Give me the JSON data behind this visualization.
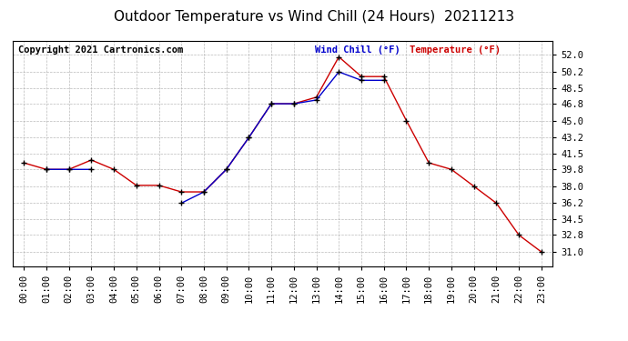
{
  "title": "Outdoor Temperature vs Wind Chill (24 Hours)  20211213",
  "copyright": "Copyright 2021 Cartronics.com",
  "legend_wind_chill": "Wind Chill (°F)",
  "legend_temperature": "Temperature (°F)",
  "hours": [
    "00:00",
    "01:00",
    "02:00",
    "03:00",
    "04:00",
    "05:00",
    "06:00",
    "07:00",
    "08:00",
    "09:00",
    "10:00",
    "11:00",
    "12:00",
    "13:00",
    "14:00",
    "15:00",
    "16:00",
    "17:00",
    "18:00",
    "19:00",
    "20:00",
    "21:00",
    "22:00",
    "23:00"
  ],
  "temperature": [
    40.5,
    39.8,
    39.8,
    40.8,
    39.8,
    38.1,
    38.1,
    37.4,
    37.4,
    39.8,
    43.2,
    46.8,
    46.8,
    47.5,
    51.8,
    49.7,
    49.7,
    45.0,
    40.5,
    39.8,
    38.0,
    36.2,
    32.8,
    31.0
  ],
  "wind_chill": [
    null,
    39.8,
    39.8,
    39.8,
    null,
    null,
    null,
    36.2,
    37.4,
    39.8,
    43.2,
    46.8,
    46.8,
    47.2,
    50.2,
    49.3,
    49.3,
    null,
    null,
    null,
    null,
    null,
    null,
    null
  ],
  "ylim_min": 29.5,
  "ylim_max": 53.5,
  "yticks": [
    31.0,
    32.8,
    34.5,
    36.2,
    38.0,
    39.8,
    41.5,
    43.2,
    45.0,
    46.8,
    48.5,
    50.2,
    52.0
  ],
  "temp_color": "#cc0000",
  "wind_color": "#0000cc",
  "background_color": "#ffffff",
  "grid_color": "#aaaaaa",
  "title_fontsize": 11,
  "label_fontsize": 7.5,
  "copyright_fontsize": 7.5
}
